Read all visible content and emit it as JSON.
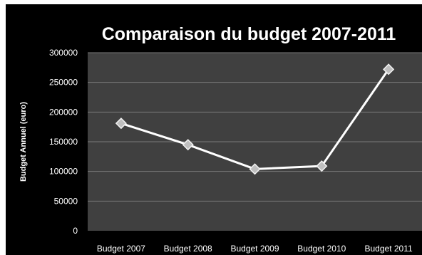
{
  "chart_data": {
    "type": "line",
    "title": "Comparaison du budget 2007-2011",
    "xlabel": "",
    "ylabel": "Budget Annuel (euro)",
    "categories": [
      "Budget 2007",
      "Budget 2008",
      "Budget 2009",
      "Budget 2010",
      "Budget 2011"
    ],
    "series": [
      {
        "values": [
          181000,
          145000,
          104000,
          109000,
          272000
        ]
      }
    ],
    "ylim": [
      0,
      300000
    ],
    "yticks": [
      "0",
      "50000",
      "100000",
      "150000",
      "200000",
      "250000",
      "300000"
    ],
    "grid": true,
    "legend": "none",
    "colors": {
      "background": "#000000",
      "plot_area": "#404040",
      "gridline": "#7a7a7a",
      "line": "#ffffff",
      "marker_fill": "#bfbfbf",
      "marker_stroke": "#f2f2f2",
      "text": "#ffffff"
    }
  }
}
